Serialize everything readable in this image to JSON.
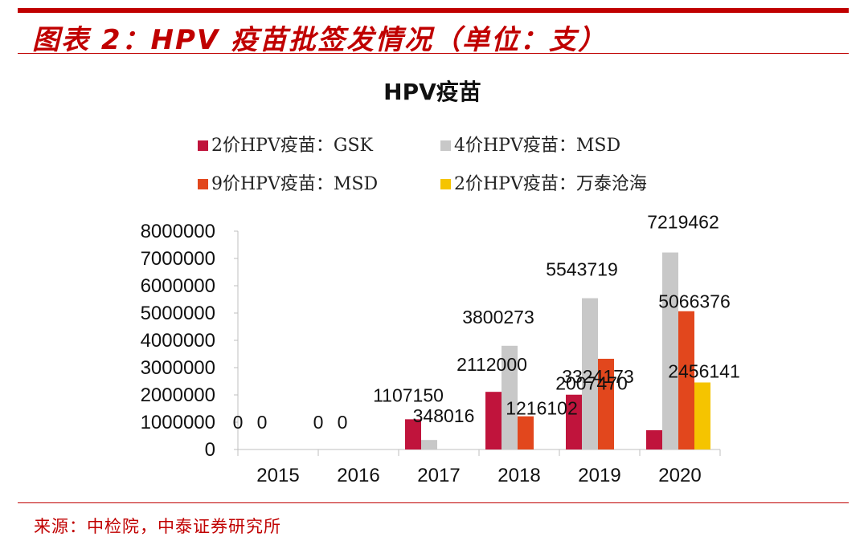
{
  "header": {
    "title": "图表 2：HPV 疫苗批签发情况（单位：支）"
  },
  "footer": {
    "source": "来源：中检院，中泰证券研究所"
  },
  "chart_data": {
    "type": "bar",
    "title": "HPV疫苗",
    "categories": [
      "2015",
      "2016",
      "2017",
      "2018",
      "2019",
      "2020"
    ],
    "series": [
      {
        "name": "2价HPV疫苗：GSK",
        "color": "#c0143c",
        "values": [
          0,
          0,
          1107150,
          2112000,
          2007470,
          705000
        ]
      },
      {
        "name": "4价HPV疫苗：MSD",
        "color": "#c8c8c8",
        "values": [
          0,
          0,
          348016,
          3800273,
          5543719,
          7219462
        ]
      },
      {
        "name": "9价HPV疫苗：MSD",
        "color": "#e2471d",
        "values": [
          null,
          null,
          null,
          1216102,
          3324173,
          5066376
        ]
      },
      {
        "name": "2价HPV疫苗：万泰沧海",
        "color": "#f5c400",
        "values": [
          null,
          null,
          null,
          null,
          null,
          2456141
        ]
      }
    ],
    "data_labels": [
      {
        "text": "0",
        "category": "2015",
        "series": 0
      },
      {
        "text": "0",
        "category": "2015",
        "series": 1
      },
      {
        "text": "0",
        "category": "2016",
        "series": 0
      },
      {
        "text": "0",
        "category": "2016",
        "series": 1
      },
      {
        "text": "1107150",
        "category": "2017",
        "series": 0
      },
      {
        "text": "348016",
        "category": "2017",
        "series": 1
      },
      {
        "text": "2112000",
        "category": "2018",
        "series": 0
      },
      {
        "text": "3800273",
        "category": "2018",
        "series": 1
      },
      {
        "text": "1216102",
        "category": "2018",
        "series": 2
      },
      {
        "text": "2007470",
        "category": "2019",
        "series": 0
      },
      {
        "text": "5543719",
        "category": "2019",
        "series": 1
      },
      {
        "text": "3324173",
        "category": "2019",
        "series": 2
      },
      {
        "text": "7219462",
        "category": "2020",
        "series": 1
      },
      {
        "text": "5066376",
        "category": "2020",
        "series": 2
      },
      {
        "text": "2456141",
        "category": "2020",
        "series": 3
      }
    ],
    "ylim": [
      0,
      8000000
    ],
    "yticks": [
      0,
      1000000,
      2000000,
      3000000,
      4000000,
      5000000,
      6000000,
      7000000,
      8000000
    ],
    "xlabel": "",
    "ylabel": "",
    "legend_position": "top"
  }
}
